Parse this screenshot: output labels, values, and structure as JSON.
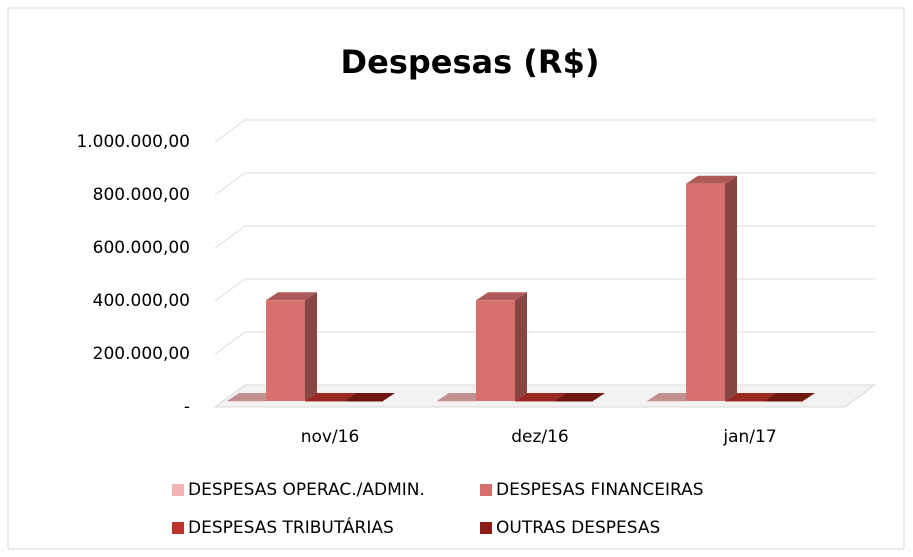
{
  "chart_data": {
    "type": "bar3d",
    "title": "Despesas (R$)",
    "categories": [
      "nov/16",
      "dez/16",
      "jan/17"
    ],
    "series": [
      {
        "name": "DESPESAS OPERAC./ADMIN.",
        "color": "#f2b5b3",
        "values": [
          0,
          0,
          0
        ]
      },
      {
        "name": "DESPESAS FINANCEIRAS",
        "color": "#d8716e",
        "values": [
          380000,
          380000,
          820000
        ]
      },
      {
        "name": "DESPESAS TRIBUTÁRIAS",
        "color": "#c0332b",
        "values": [
          0,
          0,
          0
        ]
      },
      {
        "name": "OUTRAS DESPESAS",
        "color": "#8c1c15",
        "values": [
          0,
          0,
          0
        ]
      }
    ],
    "ylim": [
      0,
      1000000
    ],
    "yticks": [
      {
        "value": 0,
        "label": "-"
      },
      {
        "value": 200000,
        "label": "200.000,00"
      },
      {
        "value": 400000,
        "label": "400.000,00"
      },
      {
        "value": 600000,
        "label": "600.000,00"
      },
      {
        "value": 800000,
        "label": "800.000,00"
      },
      {
        "value": 1000000,
        "label": "1.000.000,00"
      }
    ],
    "grid": true
  }
}
